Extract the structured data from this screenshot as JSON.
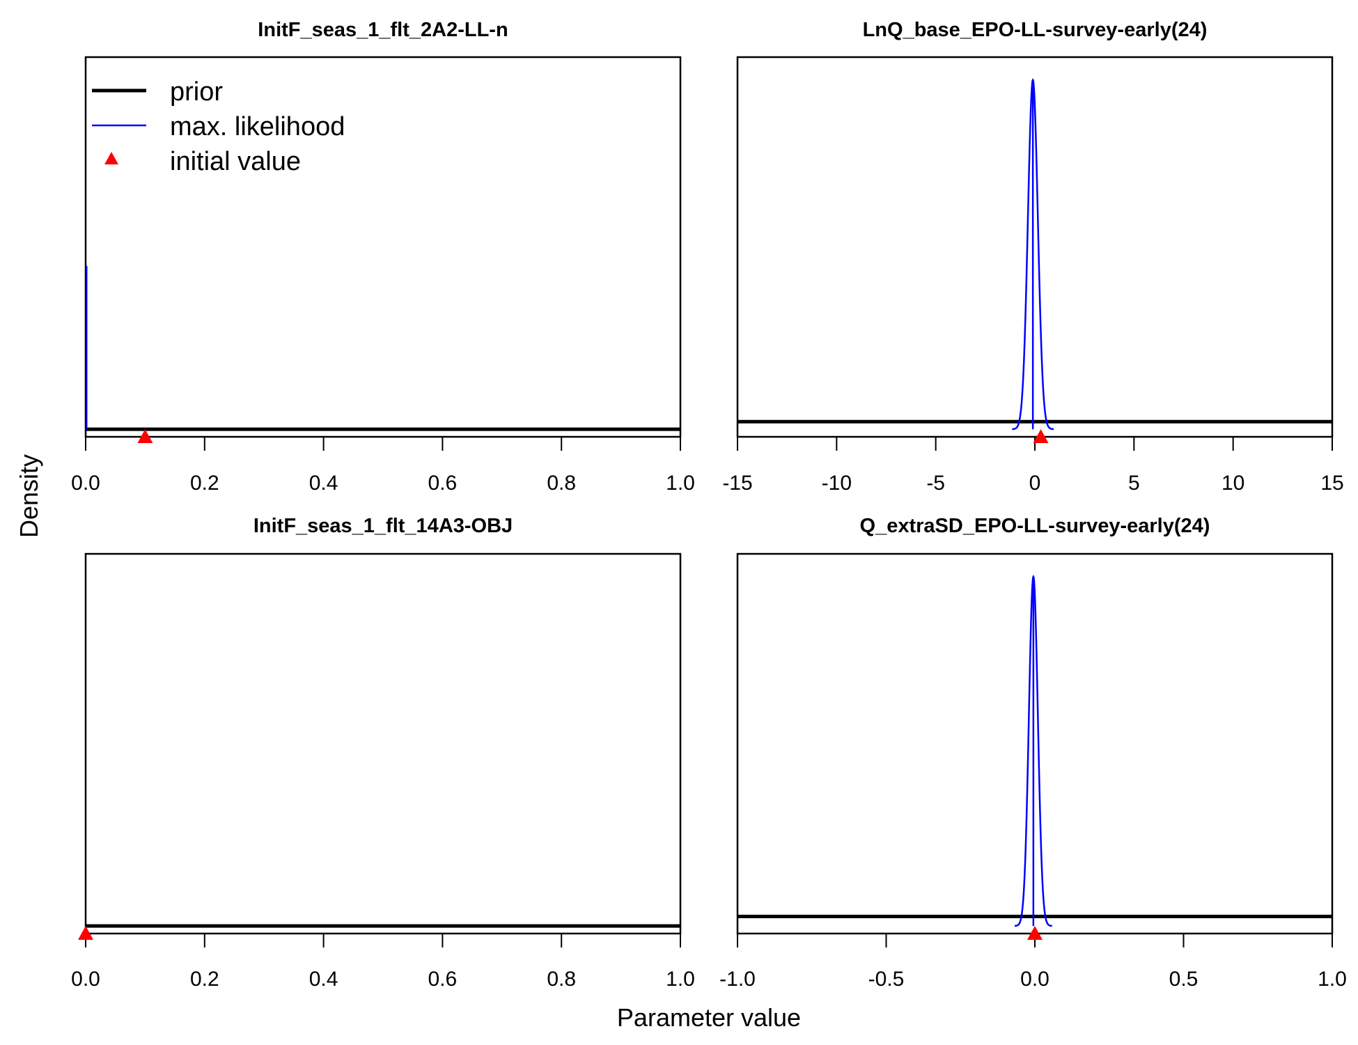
{
  "figure": {
    "xlabel": "Parameter value",
    "ylabel": "Density"
  },
  "legend": {
    "placement": "top-left of first panel",
    "entries": [
      {
        "label": "prior",
        "type": "line",
        "color": "#000000"
      },
      {
        "label": "max. likelihood",
        "type": "line",
        "color": "#0000ff"
      },
      {
        "label": "initial value",
        "type": "triangle",
        "color": "#ff0000"
      }
    ]
  },
  "colors": {
    "prior": "#000000",
    "mle": "#0000ff",
    "initial": "#ff0000"
  },
  "chart_data": [
    {
      "type": "line",
      "title": "InitF_seas_1_flt_2A2-LL-n",
      "xlim": [
        0,
        1
      ],
      "xticks": [
        0,
        0.2,
        0.4,
        0.6,
        0.8,
        1
      ],
      "xtick_labels": [
        "0.0",
        "0.2",
        "0.4",
        "0.6",
        "0.8",
        "1.0"
      ],
      "prior": {
        "shape": "flat",
        "relative_height": 0.0
      },
      "max_likelihood": {
        "shape": "spike",
        "center": 0.0,
        "sd": 0.0005,
        "relative_peak": 0.43
      },
      "initial_value": 0.1
    },
    {
      "type": "line",
      "title": "LnQ_base_EPO-LL-survey-early(24)",
      "xlim": [
        -15,
        15
      ],
      "xticks": [
        -15,
        -10,
        -5,
        0,
        5,
        10,
        15
      ],
      "xtick_labels": [
        "-15",
        "-10",
        "-5",
        "0",
        "5",
        "10",
        "15"
      ],
      "prior": {
        "shape": "flat",
        "relative_height": 0.02
      },
      "max_likelihood": {
        "shape": "normal",
        "center": -0.1,
        "sd": 0.25,
        "relative_peak": 0.92
      },
      "initial_value": 0.3
    },
    {
      "type": "line",
      "title": "InitF_seas_1_flt_14A3-OBJ",
      "xlim": [
        0,
        1
      ],
      "xticks": [
        0,
        0.2,
        0.4,
        0.6,
        0.8,
        1
      ],
      "xtick_labels": [
        "0.0",
        "0.2",
        "0.4",
        "0.6",
        "0.8",
        "1.0"
      ],
      "prior": {
        "shape": "flat",
        "relative_height": 0.0
      },
      "max_likelihood": null,
      "initial_value": 0.0
    },
    {
      "type": "line",
      "title": "Q_extraSD_EPO-LL-survey-early(24)",
      "xlim": [
        -1,
        1
      ],
      "xticks": [
        -1,
        -0.5,
        0,
        0.5,
        1
      ],
      "xtick_labels": [
        "-1.0",
        "-0.5",
        "0.0",
        "0.5",
        "1.0"
      ],
      "prior": {
        "shape": "flat",
        "relative_height": 0.025
      },
      "max_likelihood": {
        "shape": "normal",
        "center": -0.005,
        "sd": 0.015,
        "relative_peak": 0.92
      },
      "initial_value": 0.0
    }
  ]
}
